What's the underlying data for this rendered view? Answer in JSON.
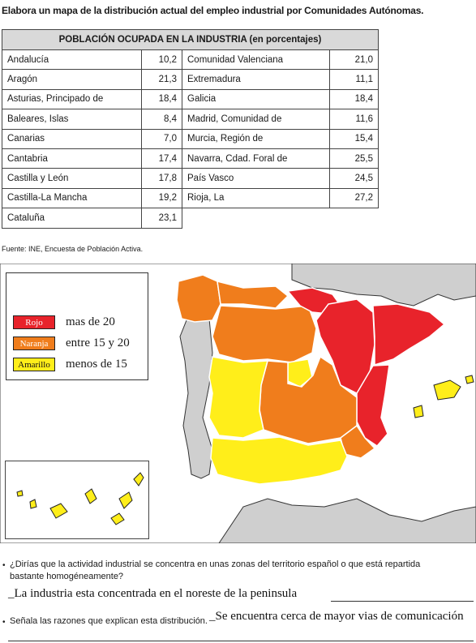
{
  "title": "Elabora un mapa de la distribución actual del empleo industrial por Comunidades Autónomas.",
  "table": {
    "header": "POBLACIÓN OCUPADA EN LA INDUSTRIA (en porcentajes)",
    "rows": [
      {
        "l_name": "Andalucía",
        "l_val": "10,2",
        "r_name": "Comunidad Valenciana",
        "r_val": "21,0"
      },
      {
        "l_name": "Aragón",
        "l_val": "21,3",
        "r_name": "Extremadura",
        "r_val": "11,1"
      },
      {
        "l_name": "Asturias, Principado de",
        "l_val": "18,4",
        "r_name": "Galicia",
        "r_val": "18,4"
      },
      {
        "l_name": "Baleares, Islas",
        "l_val": "8,4",
        "r_name": "Madrid, Comunidad de",
        "r_val": "11,6"
      },
      {
        "l_name": "Canarias",
        "l_val": "7,0",
        "r_name": "Murcia, Región de",
        "r_val": "15,4"
      },
      {
        "l_name": "Cantabria",
        "l_val": "17,4",
        "r_name": "Navarra, Cdad. Foral de",
        "r_val": "25,5"
      },
      {
        "l_name": "Castilla y León",
        "l_val": "17,8",
        "r_name": "País Vasco",
        "r_val": "24,5"
      },
      {
        "l_name": "Castilla-La Mancha",
        "l_val": "19,2",
        "r_name": "Rioja, La",
        "r_val": "27,2"
      },
      {
        "l_name": "Cataluña",
        "l_val": "23,1",
        "r_name": "",
        "r_val": ""
      }
    ]
  },
  "source": "Fuente: INE, Encuesta de Población Activa.",
  "legend": [
    {
      "swatch": "Rojo",
      "label": "mas de 20",
      "color": "#e8232b"
    },
    {
      "swatch": "Naranja",
      "label": "entre 15 y 20",
      "color": "#f07d1c"
    },
    {
      "swatch": "Amarillo",
      "label": "menos de 15",
      "color": "#ffee1a"
    }
  ],
  "colors": {
    "red": "#e8232b",
    "orange": "#f07d1c",
    "yellow": "#ffee1a",
    "land": "#cfcfcf",
    "sea": "#ffffff"
  },
  "questions": {
    "q1_bullet": "•",
    "q1_line1": "¿Dirías que la actividad industrial se concentra en unas zonas del territorio español o que está repartida",
    "q1_line2": "bastante homogéneamente?",
    "a1": "_La industria esta concentrada en el noreste de la peninsula",
    "q2_bullet": "•",
    "q2": "Señala las razones que explican esta distribución.",
    "a2": "_Se encuentra cerca de mayor vias de comunicación"
  }
}
